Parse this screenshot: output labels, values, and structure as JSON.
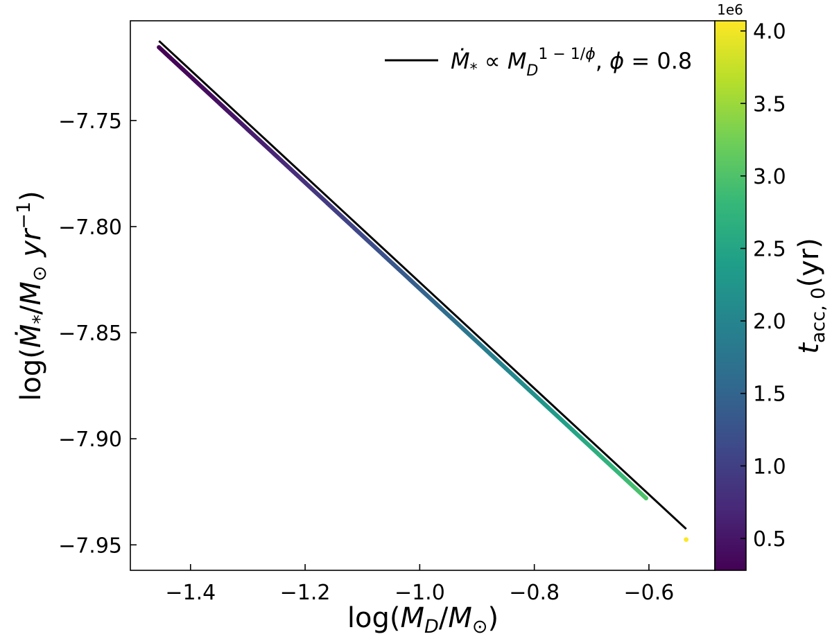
{
  "chart_data": {
    "type": "scatter",
    "xlabel": "log(M_D/M_⊙)",
    "ylabel": "log(Ṁ_*/M_⊙ yr^-1)",
    "xlim": [
      -1.505,
      -0.485
    ],
    "ylim": [
      -7.962,
      -7.703
    ],
    "xticks": [
      -1.4,
      -1.2,
      -1.0,
      -0.8,
      -0.6
    ],
    "xtick_labels": [
      "−1.4",
      "−1.2",
      "−1.0",
      "−0.8",
      "−0.6"
    ],
    "yticks": [
      -7.95,
      -7.9,
      -7.85,
      -7.8,
      -7.75
    ],
    "ytick_labels": [
      "−7.95",
      "−7.90",
      "−7.85",
      "−7.80",
      "−7.75"
    ],
    "grid": false,
    "legend_position": "top-right",
    "fit_line": {
      "label": "Ṁ_* ∝ M_D^(1 − 1/ϕ), ϕ = 0.8",
      "x": [
        -1.455,
        -0.535
      ],
      "y": [
        -7.7125,
        -7.9425
      ],
      "color": "#000000"
    },
    "scatter": {
      "x_start": -1.455,
      "x_end": -0.605,
      "y_start": -7.7155,
      "slope": -0.25,
      "count": 400,
      "outlier": {
        "x": -0.535,
        "y": -7.9475
      }
    },
    "colorbar": {
      "label": "t_acc,0(yr)",
      "multiplier": "1e6",
      "range": [
        0.28,
        4.07
      ],
      "ticks": [
        0.5,
        1.0,
        1.5,
        2.0,
        2.5,
        3.0,
        3.5,
        4.0
      ],
      "tick_labels": [
        "0.5",
        "1.0",
        "1.5",
        "2.0",
        "2.5",
        "3.0",
        "3.5",
        "4.0"
      ],
      "colormap": [
        "#440154",
        "#482878",
        "#3e4989",
        "#31688e",
        "#26828e",
        "#1f9e89",
        "#35b779",
        "#6ece58",
        "#b5de2b",
        "#fde725"
      ]
    }
  }
}
